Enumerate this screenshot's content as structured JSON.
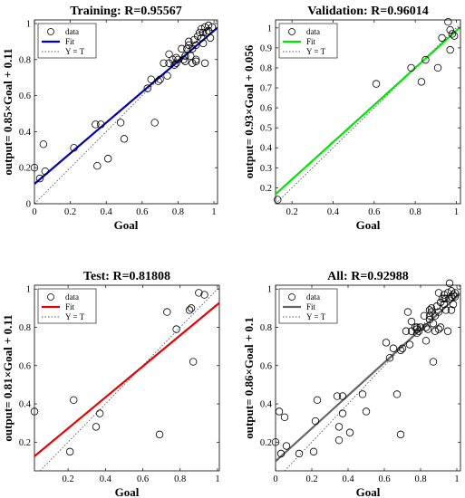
{
  "chart_data": [
    {
      "type": "scatter",
      "title": "Training: R=0.95567",
      "xlabel": "Goal",
      "ylabel": "output= 0.85×Goal + 0.11",
      "xlim": [
        0,
        1.02
      ],
      "ylim": [
        0,
        1.02
      ],
      "xticks": [
        "0",
        "0.2",
        "0.4",
        "0.6",
        "0.8",
        "1"
      ],
      "yticks": [
        "0",
        "0.2",
        "0.4",
        "0.6",
        "0.8",
        "1"
      ],
      "grid": false,
      "legend_position": "top-left",
      "legend": [
        "data",
        "Fit",
        "Y = T"
      ],
      "fit": {
        "slope": 0.85,
        "intercept": 0.11,
        "color": "#0000b4"
      },
      "identity_line_color": "#555555",
      "marker": "open-circle",
      "series": [
        {
          "name": "data",
          "points": [
            [
              0.0,
              0.2
            ],
            [
              0.03,
              0.14
            ],
            [
              0.05,
              0.33
            ],
            [
              0.06,
              0.18
            ],
            [
              0.22,
              0.31
            ],
            [
              0.34,
              0.44
            ],
            [
              0.35,
              0.21
            ],
            [
              0.37,
              0.44
            ],
            [
              0.41,
              0.25
            ],
            [
              0.48,
              0.45
            ],
            [
              0.5,
              0.36
            ],
            [
              0.63,
              0.64
            ],
            [
              0.65,
              0.69
            ],
            [
              0.67,
              0.45
            ],
            [
              0.69,
              0.68
            ],
            [
              0.7,
              0.69
            ],
            [
              0.72,
              0.78
            ],
            [
              0.74,
              0.71
            ],
            [
              0.75,
              0.78
            ],
            [
              0.75,
              0.83
            ],
            [
              0.77,
              0.8
            ],
            [
              0.78,
              0.77
            ],
            [
              0.79,
              0.78
            ],
            [
              0.8,
              0.8
            ],
            [
              0.82,
              0.86
            ],
            [
              0.83,
              0.8
            ],
            [
              0.84,
              0.79
            ],
            [
              0.85,
              0.86
            ],
            [
              0.86,
              0.88
            ],
            [
              0.86,
              0.9
            ],
            [
              0.87,
              0.82
            ],
            [
              0.88,
              0.78
            ],
            [
              0.88,
              0.86
            ],
            [
              0.89,
              0.91
            ],
            [
              0.9,
              0.79
            ],
            [
              0.9,
              0.88
            ],
            [
              0.91,
              0.93
            ],
            [
              0.92,
              0.95
            ],
            [
              0.93,
              0.92
            ],
            [
              0.93,
              0.97
            ],
            [
              0.94,
              0.89
            ],
            [
              0.94,
              0.95
            ],
            [
              0.95,
              0.78
            ],
            [
              0.95,
              0.98
            ],
            [
              0.96,
              0.95
            ],
            [
              0.97,
              0.99
            ],
            [
              0.97,
              0.96
            ],
            [
              0.98,
              0.92
            ],
            [
              0.99,
              0.98
            ],
            [
              0.9,
              0.8
            ],
            [
              0.84,
              0.82
            ],
            [
              0.79,
              0.81
            ]
          ]
        }
      ]
    },
    {
      "type": "scatter",
      "title": "Validation: R=0.96014",
      "xlabel": "Goal",
      "ylabel": "output= 0.93×Goal + 0.056",
      "xlim": [
        0.12,
        1.02
      ],
      "ylim": [
        0.12,
        1.04
      ],
      "xticks": [
        "0.2",
        "0.4",
        "0.6",
        "0.8",
        "1"
      ],
      "yticks": [
        "0.2",
        "0.3",
        "0.4",
        "0.5",
        "0.6",
        "0.7",
        "0.8",
        "0.9",
        "1"
      ],
      "grid": false,
      "legend_position": "top-left",
      "legend": [
        "data",
        "Fit",
        "Y = T"
      ],
      "fit": {
        "slope": 0.93,
        "intercept": 0.056,
        "color": "#00e600"
      },
      "identity_line_color": "#555555",
      "marker": "open-circle",
      "series": [
        {
          "name": "data",
          "points": [
            [
              0.13,
              0.14
            ],
            [
              0.61,
              0.72
            ],
            [
              0.78,
              0.8
            ],
            [
              0.83,
              0.73
            ],
            [
              0.85,
              0.84
            ],
            [
              0.91,
              0.8
            ],
            [
              0.93,
              0.95
            ],
            [
              0.96,
              1.03
            ],
            [
              0.97,
              0.99
            ],
            [
              0.97,
              0.89
            ],
            [
              0.98,
              0.97
            ],
            [
              0.99,
              0.96
            ]
          ]
        }
      ]
    },
    {
      "type": "scatter",
      "title": "Test: R=0.81808",
      "xlabel": "Goal",
      "ylabel": "output= 0.81×Goal + 0.11",
      "xlim": [
        0.02,
        1.01
      ],
      "ylim": [
        0.05,
        1.02
      ],
      "xticks": [
        "0.2",
        "0.4",
        "0.6",
        "0.8",
        "1"
      ],
      "yticks": [
        "0.2",
        "0.4",
        "0.6",
        "0.8",
        "1"
      ],
      "grid": false,
      "legend_position": "top-left",
      "legend": [
        "data",
        "Fit",
        "Y = T"
      ],
      "fit": {
        "slope": 0.81,
        "intercept": 0.11,
        "color": "#e60000"
      },
      "identity_line_color": "#555555",
      "marker": "open-circle",
      "series": [
        {
          "name": "data",
          "points": [
            [
              0.02,
              0.36
            ],
            [
              0.21,
              0.15
            ],
            [
              0.23,
              0.42
            ],
            [
              0.35,
              0.28
            ],
            [
              0.37,
              0.35
            ],
            [
              0.69,
              0.24
            ],
            [
              0.73,
              0.88
            ],
            [
              0.78,
              0.79
            ],
            [
              0.85,
              0.89
            ],
            [
              0.86,
              0.9
            ],
            [
              0.87,
              0.62
            ],
            [
              0.9,
              0.98
            ],
            [
              0.93,
              0.97
            ]
          ]
        }
      ]
    },
    {
      "type": "scatter",
      "title": "All: R=0.92988",
      "xlabel": "Goal",
      "ylabel": "output= 0.86×Goal + 0.1",
      "xlim": [
        0,
        1.02
      ],
      "ylim": [
        0.05,
        1.02
      ],
      "xticks": [
        "0",
        "0.2",
        "0.4",
        "0.6",
        "0.8",
        "1"
      ],
      "yticks": [
        "0.2",
        "0.4",
        "0.6",
        "0.8",
        "1"
      ],
      "grid": false,
      "legend_position": "top-left",
      "legend": [
        "data",
        "Fit",
        "Y = T"
      ],
      "fit": {
        "slope": 0.86,
        "intercept": 0.1,
        "color": "#666666"
      },
      "identity_line_color": "#555555",
      "marker": "open-circle",
      "series": [
        {
          "name": "data",
          "points": [
            [
              0.0,
              0.2
            ],
            [
              0.02,
              0.36
            ],
            [
              0.03,
              0.14
            ],
            [
              0.05,
              0.33
            ],
            [
              0.06,
              0.18
            ],
            [
              0.13,
              0.14
            ],
            [
              0.21,
              0.15
            ],
            [
              0.22,
              0.31
            ],
            [
              0.23,
              0.42
            ],
            [
              0.34,
              0.44
            ],
            [
              0.35,
              0.21
            ],
            [
              0.35,
              0.28
            ],
            [
              0.37,
              0.35
            ],
            [
              0.37,
              0.44
            ],
            [
              0.41,
              0.25
            ],
            [
              0.48,
              0.45
            ],
            [
              0.5,
              0.36
            ],
            [
              0.61,
              0.72
            ],
            [
              0.63,
              0.64
            ],
            [
              0.65,
              0.69
            ],
            [
              0.67,
              0.45
            ],
            [
              0.69,
              0.68
            ],
            [
              0.69,
              0.24
            ],
            [
              0.7,
              0.69
            ],
            [
              0.72,
              0.78
            ],
            [
              0.73,
              0.88
            ],
            [
              0.74,
              0.71
            ],
            [
              0.75,
              0.78
            ],
            [
              0.75,
              0.83
            ],
            [
              0.77,
              0.8
            ],
            [
              0.78,
              0.77
            ],
            [
              0.78,
              0.79
            ],
            [
              0.78,
              0.8
            ],
            [
              0.79,
              0.78
            ],
            [
              0.8,
              0.8
            ],
            [
              0.82,
              0.86
            ],
            [
              0.83,
              0.73
            ],
            [
              0.83,
              0.8
            ],
            [
              0.84,
              0.79
            ],
            [
              0.85,
              0.84
            ],
            [
              0.85,
              0.86
            ],
            [
              0.85,
              0.89
            ],
            [
              0.86,
              0.88
            ],
            [
              0.86,
              0.9
            ],
            [
              0.87,
              0.62
            ],
            [
              0.87,
              0.82
            ],
            [
              0.88,
              0.78
            ],
            [
              0.88,
              0.86
            ],
            [
              0.89,
              0.91
            ],
            [
              0.9,
              0.79
            ],
            [
              0.9,
              0.88
            ],
            [
              0.9,
              0.98
            ],
            [
              0.91,
              0.8
            ],
            [
              0.91,
              0.93
            ],
            [
              0.92,
              0.95
            ],
            [
              0.93,
              0.92
            ],
            [
              0.93,
              0.95
            ],
            [
              0.93,
              0.97
            ],
            [
              0.94,
              0.89
            ],
            [
              0.94,
              0.95
            ],
            [
              0.95,
              0.78
            ],
            [
              0.95,
              0.98
            ],
            [
              0.96,
              1.03
            ],
            [
              0.96,
              0.95
            ],
            [
              0.97,
              0.99
            ],
            [
              0.97,
              0.96
            ],
            [
              0.97,
              0.89
            ],
            [
              0.98,
              0.92
            ],
            [
              0.98,
              0.97
            ],
            [
              0.99,
              0.96
            ],
            [
              0.99,
              0.98
            ]
          ]
        }
      ]
    }
  ]
}
